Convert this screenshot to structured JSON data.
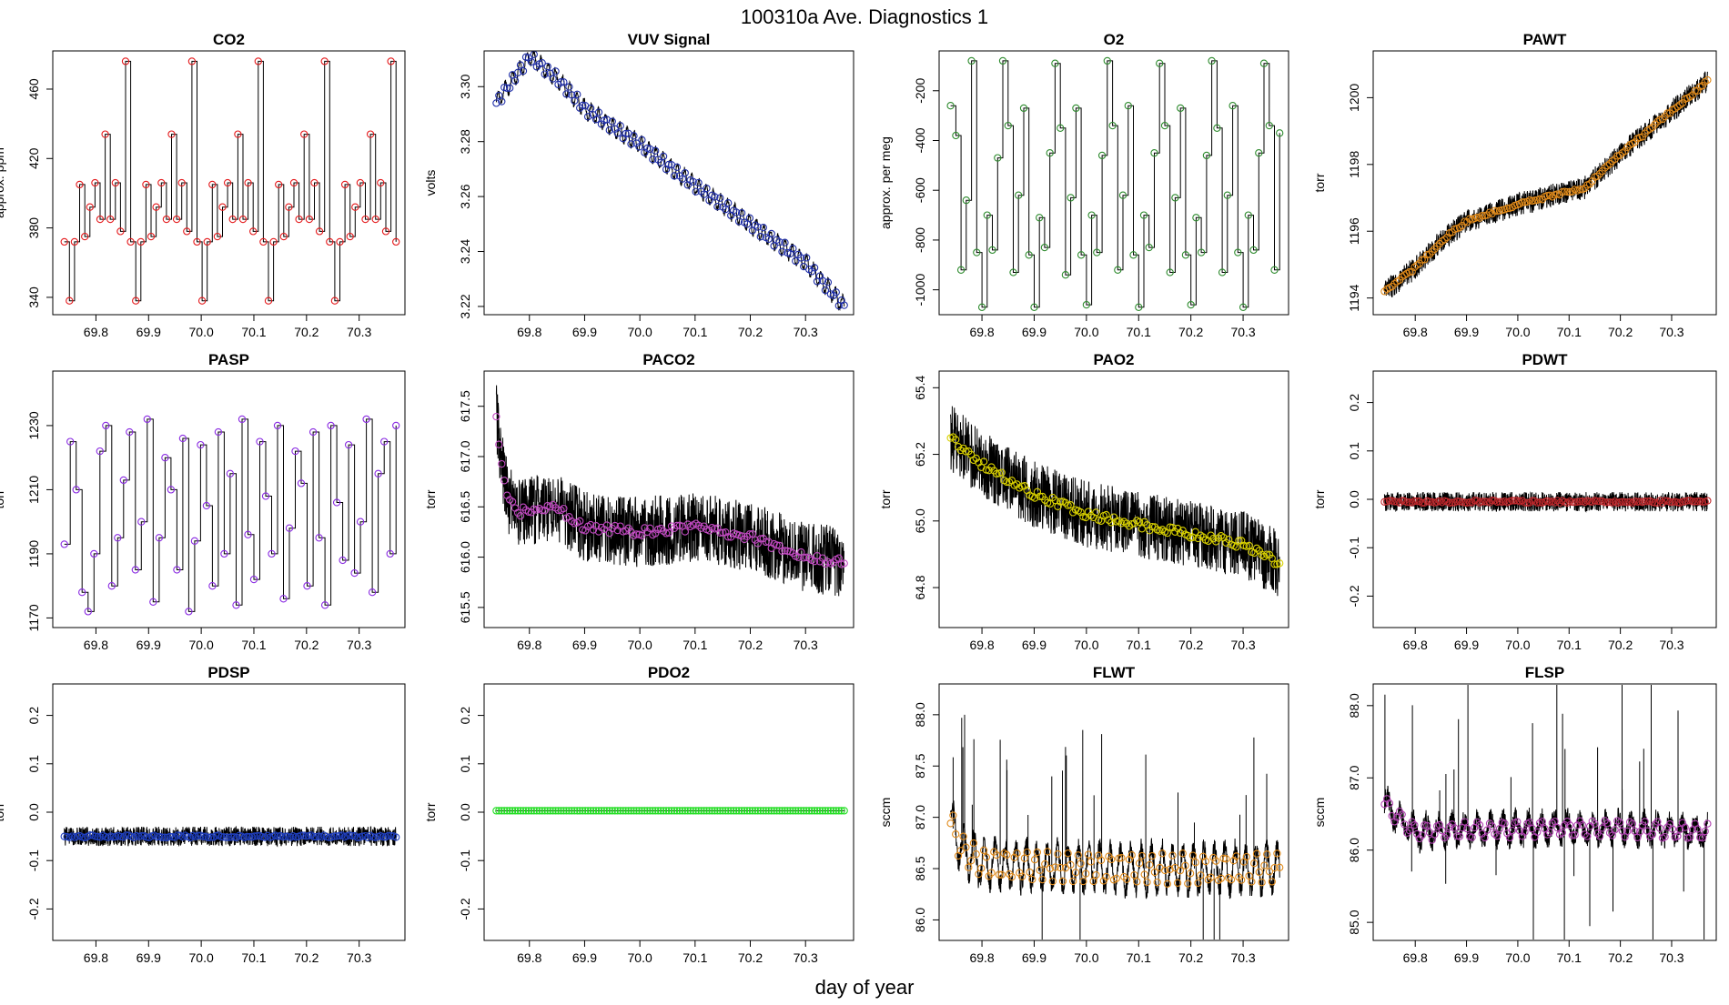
{
  "figure": {
    "title": "100310a   Ave. Diagnostics 1",
    "xlabel": "day of year"
  },
  "chart_data": [
    {
      "type": "line",
      "title": "CO2",
      "ylabel": "approx. ppm",
      "xlim": [
        69.718,
        70.387
      ],
      "ylim": [
        330,
        482
      ],
      "xticks": [
        69.8,
        69.9,
        70.0,
        70.1,
        70.2,
        70.3
      ],
      "xtick_labels": [
        "69.8",
        "69.9",
        "70.0",
        "70.1",
        "70.2",
        "70.3"
      ],
      "yticks": [
        340,
        380,
        420,
        460
      ],
      "ytick_labels": [
        "340",
        "380",
        "420",
        "460"
      ],
      "marker_color": "#e41a1c",
      "x_range": [
        69.74,
        70.37
      ],
      "pattern": "steps",
      "levels": [
        372,
        338,
        372,
        405,
        375,
        392,
        406,
        385,
        434,
        385,
        406,
        378,
        476,
        372,
        338,
        372,
        405,
        375,
        392,
        406,
        385,
        434,
        385,
        406,
        378,
        476,
        372,
        338,
        372,
        405,
        375,
        392,
        406,
        385,
        434,
        385,
        406,
        378,
        476,
        372,
        338,
        372,
        405,
        375,
        392,
        406,
        385,
        434,
        385,
        406,
        378,
        476,
        372,
        338,
        372,
        405,
        375,
        392,
        406,
        385,
        434,
        385,
        406,
        378,
        476,
        372
      ],
      "noise": 0
    },
    {
      "type": "line",
      "title": "VUV Signal",
      "ylabel": "volts",
      "xlim": [
        69.718,
        70.387
      ],
      "ylim": [
        3.217,
        3.313
      ],
      "xticks": [
        69.8,
        69.9,
        70.0,
        70.1,
        70.2,
        70.3
      ],
      "xtick_labels": [
        "69.8",
        "69.9",
        "70.0",
        "70.1",
        "70.2",
        "70.3"
      ],
      "yticks": [
        3.22,
        3.24,
        3.26,
        3.28,
        3.3
      ],
      "ytick_labels": [
        "3.22",
        "3.24",
        "3.26",
        "3.28",
        "3.30"
      ],
      "marker_color": "#1f2ea8",
      "x_range": [
        69.74,
        70.37
      ],
      "pattern": "wave",
      "anchors": [
        [
          69.74,
          3.294
        ],
        [
          69.8,
          3.311
        ],
        [
          69.85,
          3.303
        ],
        [
          69.9,
          3.292
        ],
        [
          70.0,
          3.279
        ],
        [
          70.1,
          3.264
        ],
        [
          70.2,
          3.25
        ],
        [
          70.3,
          3.236
        ],
        [
          70.37,
          3.22
        ]
      ],
      "amp": 0.003,
      "period": 0.013,
      "noise": 0.001,
      "n_markers": 130
    },
    {
      "type": "line",
      "title": "O2",
      "ylabel": "approx. per meg",
      "xlim": [
        69.718,
        70.387
      ],
      "ylim": [
        -1100,
        -40
      ],
      "xticks": [
        69.8,
        69.9,
        70.0,
        70.1,
        70.2,
        70.3
      ],
      "xtick_labels": [
        "69.8",
        "69.9",
        "70.0",
        "70.1",
        "70.2",
        "70.3"
      ],
      "yticks": [
        -1000,
        -800,
        -600,
        -400,
        -200
      ],
      "ytick_labels": [
        "-1000",
        "-800",
        "-600",
        "-400",
        "-200"
      ],
      "marker_color": "#2e8b2e",
      "x_range": [
        69.74,
        70.37
      ],
      "pattern": "steps",
      "levels": [
        -260,
        -380,
        -920,
        -640,
        -80,
        -850,
        -1070,
        -700,
        -840,
        -470,
        -80,
        -340,
        -930,
        -620,
        -270,
        -860,
        -1070,
        -710,
        -830,
        -450,
        -90,
        -350,
        -940,
        -630,
        -270,
        -860,
        -1060,
        -700,
        -850,
        -460,
        -80,
        -340,
        -920,
        -620,
        -260,
        -860,
        -1070,
        -700,
        -830,
        -450,
        -90,
        -340,
        -930,
        -630,
        -270,
        -860,
        -1060,
        -710,
        -850,
        -460,
        -80,
        -350,
        -930,
        -620,
        -260,
        -850,
        -1070,
        -700,
        -840,
        -450,
        -90,
        -340,
        -920,
        -370
      ],
      "noise": 0
    },
    {
      "type": "line",
      "title": "PAWT",
      "ylabel": "torr",
      "xlim": [
        69.718,
        70.387
      ],
      "ylim": [
        1193.5,
        1201.4
      ],
      "xticks": [
        69.8,
        69.9,
        70.0,
        70.1,
        70.2,
        70.3
      ],
      "xtick_labels": [
        "69.8",
        "69.9",
        "70.0",
        "70.1",
        "70.2",
        "70.3"
      ],
      "yticks": [
        1194,
        1196,
        1198,
        1200
      ],
      "ytick_labels": [
        "1194",
        "1196",
        "1198",
        "1200"
      ],
      "marker_color": "#e08a1a",
      "x_range": [
        69.74,
        70.37
      ],
      "pattern": "smooth",
      "anchors": [
        [
          69.74,
          1194.2
        ],
        [
          69.8,
          1194.9
        ],
        [
          69.85,
          1195.7
        ],
        [
          69.9,
          1196.3
        ],
        [
          70.0,
          1196.8
        ],
        [
          70.05,
          1197.0
        ],
        [
          70.1,
          1197.2
        ],
        [
          70.13,
          1197.3
        ],
        [
          70.2,
          1198.3
        ],
        [
          70.3,
          1199.6
        ],
        [
          70.37,
          1200.5
        ]
      ],
      "noise": 0.35,
      "n_markers": 130
    },
    {
      "type": "line",
      "title": "PASP",
      "ylabel": "torr",
      "xlim": [
        69.718,
        70.387
      ],
      "ylim": [
        1167,
        1247
      ],
      "xticks": [
        69.8,
        69.9,
        70.0,
        70.1,
        70.2,
        70.3
      ],
      "xtick_labels": [
        "69.8",
        "69.9",
        "70.0",
        "70.1",
        "70.2",
        "70.3"
      ],
      "yticks": [
        1170,
        1190,
        1210,
        1230
      ],
      "ytick_labels": [
        "1170",
        "1190",
        "1210",
        "1230"
      ],
      "marker_color": "#8a2be2",
      "x_range": [
        69.74,
        70.37
      ],
      "pattern": "steps",
      "levels": [
        1193,
        1225,
        1210,
        1178,
        1172,
        1190,
        1222,
        1230,
        1180,
        1195,
        1213,
        1228,
        1185,
        1200,
        1232,
        1175,
        1195,
        1220,
        1210,
        1185,
        1226,
        1172,
        1194,
        1224,
        1205,
        1180,
        1228,
        1190,
        1215,
        1174,
        1232,
        1196,
        1182,
        1225,
        1208,
        1190,
        1230,
        1176,
        1198,
        1222,
        1212,
        1180,
        1228,
        1195,
        1174,
        1230,
        1206,
        1188,
        1224,
        1184,
        1200,
        1232,
        1178,
        1215,
        1225,
        1190,
        1230
      ],
      "noise": 0
    },
    {
      "type": "line",
      "title": "PACO2",
      "ylabel": "torr",
      "xlim": [
        69.718,
        70.387
      ],
      "ylim": [
        615.3,
        617.85
      ],
      "xticks": [
        69.8,
        69.9,
        70.0,
        70.1,
        70.2,
        70.3
      ],
      "xtick_labels": [
        "69.8",
        "69.9",
        "70.0",
        "70.1",
        "70.2",
        "70.3"
      ],
      "yticks": [
        615.5,
        616.0,
        616.5,
        617.0,
        617.5
      ],
      "ytick_labels": [
        "615.5",
        "616.0",
        "616.5",
        "617.0",
        "617.5"
      ],
      "marker_color": "#c24ac2",
      "x_range": [
        69.74,
        70.37
      ],
      "pattern": "smooth",
      "anchors": [
        [
          69.74,
          617.4
        ],
        [
          69.75,
          616.9
        ],
        [
          69.76,
          616.6
        ],
        [
          69.78,
          616.45
        ],
        [
          69.85,
          616.5
        ],
        [
          69.9,
          616.3
        ],
        [
          70.0,
          616.25
        ],
        [
          70.1,
          616.3
        ],
        [
          70.2,
          616.2
        ],
        [
          70.3,
          616.0
        ],
        [
          70.37,
          615.95
        ]
      ],
      "noise": 0.35,
      "n_markers": 130
    },
    {
      "type": "line",
      "title": "PAO2",
      "ylabel": "torr",
      "xlim": [
        69.718,
        70.387
      ],
      "ylim": [
        64.68,
        65.45
      ],
      "xticks": [
        69.8,
        69.9,
        70.0,
        70.1,
        70.2,
        70.3
      ],
      "xtick_labels": [
        "69.8",
        "69.9",
        "70.0",
        "70.1",
        "70.2",
        "70.3"
      ],
      "yticks": [
        64.8,
        65.0,
        65.2,
        65.4
      ],
      "ytick_labels": [
        "64.8",
        "65.0",
        "65.2",
        "65.4"
      ],
      "marker_color": "#d8d000",
      "x_range": [
        69.74,
        70.37
      ],
      "pattern": "smooth",
      "anchors": [
        [
          69.74,
          65.25
        ],
        [
          69.8,
          65.17
        ],
        [
          69.9,
          65.08
        ],
        [
          70.0,
          65.02
        ],
        [
          70.1,
          64.99
        ],
        [
          70.2,
          64.96
        ],
        [
          70.3,
          64.93
        ],
        [
          70.37,
          64.87
        ]
      ],
      "noise": 0.1,
      "n_markers": 130
    },
    {
      "type": "line",
      "title": "PDWT",
      "ylabel": "torr",
      "xlim": [
        69.718,
        70.387
      ],
      "ylim": [
        -0.265,
        0.265
      ],
      "xticks": [
        69.8,
        69.9,
        70.0,
        70.1,
        70.2,
        70.3
      ],
      "xtick_labels": [
        "69.8",
        "69.9",
        "70.0",
        "70.1",
        "70.2",
        "70.3"
      ],
      "yticks": [
        -0.2,
        -0.1,
        0.0,
        0.1,
        0.2
      ],
      "ytick_labels": [
        "-0.2",
        "-0.1",
        "0.0",
        "0.1",
        "0.2"
      ],
      "marker_color": "#c0282c",
      "x_range": [
        69.74,
        70.37
      ],
      "pattern": "smooth",
      "anchors": [
        [
          69.74,
          -0.005
        ],
        [
          70.37,
          -0.005
        ]
      ],
      "noise": 0.02,
      "n_markers": 130
    },
    {
      "type": "line",
      "title": "PDSP",
      "ylabel": "torr",
      "xlim": [
        69.718,
        70.387
      ],
      "ylim": [
        -0.265,
        0.265
      ],
      "xticks": [
        69.8,
        69.9,
        70.0,
        70.1,
        70.2,
        70.3
      ],
      "xtick_labels": [
        "69.8",
        "69.9",
        "70.0",
        "70.1",
        "70.2",
        "70.3"
      ],
      "yticks": [
        -0.2,
        -0.1,
        0.0,
        0.1,
        0.2
      ],
      "ytick_labels": [
        "-0.2",
        "-0.1",
        "0.0",
        "0.1",
        "0.2"
      ],
      "marker_color": "#1f3fbf",
      "x_range": [
        69.74,
        70.37
      ],
      "pattern": "smooth",
      "anchors": [
        [
          69.74,
          -0.05
        ],
        [
          70.37,
          -0.05
        ]
      ],
      "noise": 0.02,
      "n_markers": 130
    },
    {
      "type": "line",
      "title": "PDO2",
      "ylabel": "torr",
      "xlim": [
        69.718,
        70.387
      ],
      "ylim": [
        -0.265,
        0.265
      ],
      "xticks": [
        69.8,
        69.9,
        70.0,
        70.1,
        70.2,
        70.3
      ],
      "xtick_labels": [
        "69.8",
        "69.9",
        "70.0",
        "70.1",
        "70.2",
        "70.3"
      ],
      "yticks": [
        -0.2,
        -0.1,
        0.0,
        0.1,
        0.2
      ],
      "ytick_labels": [
        "-0.2",
        "-0.1",
        "0.0",
        "0.1",
        "0.2"
      ],
      "marker_color": "#22dd22",
      "x_range": [
        69.74,
        70.37
      ],
      "pattern": "smooth",
      "anchors": [
        [
          69.74,
          0.003
        ],
        [
          70.37,
          0.003
        ]
      ],
      "noise": 0,
      "n_markers": 130
    },
    {
      "type": "line",
      "title": "FLWT",
      "ylabel": "sccm",
      "xlim": [
        69.718,
        70.387
      ],
      "ylim": [
        85.8,
        88.3
      ],
      "xticks": [
        69.8,
        69.9,
        70.0,
        70.1,
        70.2,
        70.3
      ],
      "xtick_labels": [
        "69.8",
        "69.9",
        "70.0",
        "70.1",
        "70.2",
        "70.3"
      ],
      "yticks": [
        86.0,
        86.5,
        87.0,
        87.5,
        88.0
      ],
      "ytick_labels": [
        "86.0",
        "86.5",
        "87.0",
        "87.5",
        "88.0"
      ],
      "marker_color": "#e08a1a",
      "x_range": [
        69.74,
        70.37
      ],
      "pattern": "wave",
      "anchors": [
        [
          69.74,
          86.95
        ],
        [
          69.76,
          86.7
        ],
        [
          69.8,
          86.55
        ],
        [
          70.0,
          86.5
        ],
        [
          70.2,
          86.5
        ],
        [
          70.37,
          86.5
        ]
      ],
      "amp": 0.2,
      "period": 0.02,
      "noise": 0.1,
      "n_markers": 130
    },
    {
      "type": "line",
      "title": "FLSP",
      "ylabel": "sccm",
      "xlim": [
        69.718,
        70.387
      ],
      "ylim": [
        84.75,
        88.3
      ],
      "xticks": [
        69.8,
        69.9,
        70.0,
        70.1,
        70.2,
        70.3
      ],
      "xtick_labels": [
        "69.8",
        "69.9",
        "70.0",
        "70.1",
        "70.2",
        "70.3"
      ],
      "yticks": [
        85.0,
        86.0,
        87.0,
        88.0
      ],
      "ytick_labels": [
        "85.0",
        "86.0",
        "87.0",
        "88.0"
      ],
      "marker_color": "#b040b0",
      "x_range": [
        69.74,
        70.37
      ],
      "pattern": "wave",
      "anchors": [
        [
          69.74,
          86.65
        ],
        [
          69.76,
          86.5
        ],
        [
          69.8,
          86.25
        ],
        [
          70.0,
          86.3
        ],
        [
          70.2,
          86.3
        ],
        [
          70.37,
          86.25
        ]
      ],
      "amp": 0.15,
      "period": 0.025,
      "noise": 0.15,
      "n_markers": 130
    }
  ]
}
